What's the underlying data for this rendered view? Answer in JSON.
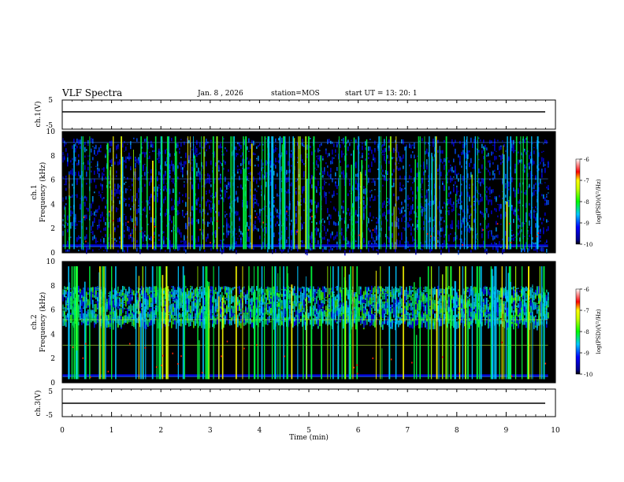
{
  "header": {
    "title": "VLF Spectra",
    "date": "Jan. 8 , 2026",
    "station": "station=MOS",
    "start_ut": "start UT = 13: 20: 1"
  },
  "chart_data": [
    {
      "type": "line",
      "panel": "ch1-voltage",
      "ylabel": "ch.1(V)",
      "ylim": [
        -5,
        5
      ],
      "yticks": [
        "5",
        "-5"
      ],
      "x": [
        0,
        9.8
      ],
      "values": [
        0,
        0
      ]
    },
    {
      "type": "heatmap",
      "panel": "ch1-spectrogram",
      "ylabel": "ch.1\nFrequency (kHz)",
      "ylabel_line1": "ch.1",
      "ylabel_line2": "Frequency (kHz)",
      "ylim": [
        0,
        10
      ],
      "yticks": [
        "0",
        "2",
        "4",
        "6",
        "8",
        "10"
      ],
      "xlim": [
        0,
        10
      ],
      "colorbar": {
        "label": "log(PSD)(V²/Hz)",
        "range": [
          -10,
          -6
        ],
        "ticks": [
          "-6",
          "-7",
          "-8",
          "-9",
          "-10"
        ]
      },
      "dominant_band_khz": [
        0.2,
        9.5
      ]
    },
    {
      "type": "heatmap",
      "panel": "ch2-spectrogram",
      "ylabel": "ch.2\nFrequency (kHz)",
      "ylabel_line1": "ch.2",
      "ylabel_line2": "Frequency (kHz)",
      "ylim": [
        0,
        10
      ],
      "yticks": [
        "0",
        "2",
        "4",
        "6",
        "8",
        "10"
      ],
      "xlim": [
        0,
        10
      ],
      "colorbar": {
        "label": "log(PSD)(V²/Hz)",
        "range": [
          -10,
          -6
        ],
        "ticks": [
          "-6",
          "-7",
          "-8",
          "-9",
          "-10"
        ]
      },
      "dominant_band_khz": [
        5,
        8
      ]
    },
    {
      "type": "line",
      "panel": "ch3-voltage",
      "ylabel": "ch.3(V)",
      "ylim": [
        -5,
        5
      ],
      "yticks": [
        "5",
        "-5"
      ],
      "x": [
        0,
        9.8
      ],
      "values": [
        0,
        0
      ]
    }
  ],
  "xaxis": {
    "label": "Time (min)",
    "xlim": [
      0,
      10
    ],
    "ticks": [
      "0",
      "1",
      "2",
      "3",
      "4",
      "5",
      "6",
      "7",
      "8",
      "9",
      "10"
    ]
  },
  "colors": {
    "background": "#000000",
    "low": "#0000ff",
    "mid": "#00ff00",
    "high": "#ff0000"
  }
}
